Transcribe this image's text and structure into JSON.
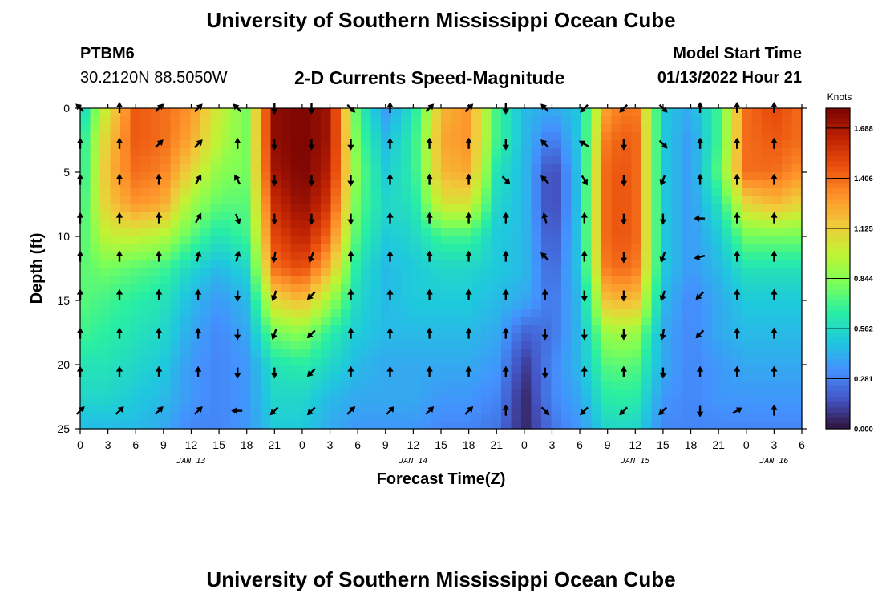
{
  "header": {
    "main_title": "University of Southern Mississippi Ocean Cube",
    "station": "PTBM6",
    "coordinates": "30.2120N  88.5050W",
    "subtitle": "2-D Currents Speed-Magnitude",
    "model_start_label": "Model Start Time",
    "model_start_value": "01/13/2022 Hour 21",
    "bottom_title": "University of Southern Mississippi Ocean Cube"
  },
  "chart_data": {
    "type": "heatmap",
    "title": "2-D Currents Speed-Magnitude",
    "xlabel": "Forecast Time(Z)",
    "ylabel": "Depth (ft)",
    "x_unit": "hours since 00Z JAN 13",
    "xlim": [
      0,
      78
    ],
    "ylim": [
      0,
      25
    ],
    "y_inverted": true,
    "x_ticks": [
      {
        "h": 0,
        "label": "0"
      },
      {
        "h": 3,
        "label": "3"
      },
      {
        "h": 6,
        "label": "6"
      },
      {
        "h": 9,
        "label": "9"
      },
      {
        "h": 12,
        "label": "12"
      },
      {
        "h": 15,
        "label": "15"
      },
      {
        "h": 18,
        "label": "18"
      },
      {
        "h": 21,
        "label": "21"
      },
      {
        "h": 24,
        "label": "0"
      },
      {
        "h": 27,
        "label": "3"
      },
      {
        "h": 30,
        "label": "6"
      },
      {
        "h": 33,
        "label": "9"
      },
      {
        "h": 36,
        "label": "12"
      },
      {
        "h": 39,
        "label": "15"
      },
      {
        "h": 42,
        "label": "18"
      },
      {
        "h": 45,
        "label": "21"
      },
      {
        "h": 48,
        "label": "0"
      },
      {
        "h": 51,
        "label": "3"
      },
      {
        "h": 54,
        "label": "6"
      },
      {
        "h": 57,
        "label": "9"
      },
      {
        "h": 60,
        "label": "12"
      },
      {
        "h": 63,
        "label": "15"
      },
      {
        "h": 66,
        "label": "18"
      },
      {
        "h": 69,
        "label": "21"
      },
      {
        "h": 72,
        "label": "0"
      },
      {
        "h": 75,
        "label": "3"
      },
      {
        "h": 78,
        "label": "6"
      }
    ],
    "y_ticks": [
      {
        "d": 0,
        "label": "0"
      },
      {
        "d": 5,
        "label": "5"
      },
      {
        "d": 10,
        "label": "10"
      },
      {
        "d": 15,
        "label": "15"
      },
      {
        "d": 20,
        "label": "20"
      },
      {
        "d": 25,
        "label": "25"
      }
    ],
    "date_labels": [
      {
        "h": 12,
        "label": "JAN 13"
      },
      {
        "h": 36,
        "label": "JAN 14"
      },
      {
        "h": 60,
        "label": "JAN 15"
      },
      {
        "h": 75,
        "label": "JAN 16"
      }
    ],
    "colorbar": {
      "unit": "Knots",
      "min": 0.0,
      "max": 1.8,
      "ticks": [
        0.0,
        0.281,
        0.562,
        0.844,
        1.125,
        1.406,
        1.688
      ],
      "tick_labels": [
        "0.000",
        "0.281",
        "0.562",
        "0.844",
        "1.125",
        "1.406",
        "1.688"
      ],
      "colors": [
        "#30123b",
        "#4454c4",
        "#4490fe",
        "#1fc8de",
        "#29efa2",
        "#7dff56",
        "#c1f334",
        "#f1ca3a",
        "#fe922a",
        "#ea4f0d",
        "#be2102",
        "#7a0403"
      ]
    },
    "depths_ft": [
      0,
      2.5,
      5,
      7.5,
      10,
      12.5,
      15,
      17.5,
      20,
      22.5,
      25
    ],
    "hours": [
      0,
      3,
      6,
      9,
      12,
      15,
      18,
      21,
      24,
      27,
      30,
      33,
      36,
      39,
      42,
      45,
      48,
      51,
      54,
      57,
      60,
      63,
      66,
      69,
      72,
      75,
      78
    ],
    "speed_knots": [
      [
        0.5,
        1.05,
        1.45,
        1.4,
        1.3,
        1.0,
        0.8,
        1.75,
        1.8,
        1.7,
        0.7,
        0.35,
        0.6,
        1.2,
        1.3,
        0.7,
        0.45,
        0.4,
        0.5,
        1.3,
        1.4,
        0.5,
        0.4,
        0.7,
        1.4,
        1.5,
        1.4
      ],
      [
        0.6,
        1.15,
        1.45,
        1.4,
        1.25,
        0.95,
        0.8,
        1.75,
        1.8,
        1.7,
        0.75,
        0.45,
        0.65,
        1.25,
        1.3,
        0.7,
        0.45,
        0.25,
        0.5,
        1.4,
        1.45,
        0.5,
        0.35,
        0.7,
        1.4,
        1.45,
        1.4
      ],
      [
        0.6,
        1.2,
        1.4,
        1.35,
        1.1,
        0.85,
        0.8,
        1.7,
        1.8,
        1.65,
        0.8,
        0.5,
        0.65,
        1.2,
        1.25,
        0.6,
        0.45,
        0.1,
        0.5,
        1.45,
        1.45,
        0.5,
        0.35,
        0.75,
        1.4,
        1.4,
        1.3
      ],
      [
        0.65,
        1.15,
        1.3,
        1.25,
        0.9,
        0.75,
        0.75,
        1.6,
        1.75,
        1.55,
        0.75,
        0.55,
        0.6,
        1.05,
        1.05,
        0.55,
        0.45,
        0.1,
        0.5,
        1.45,
        1.45,
        0.5,
        0.35,
        0.6,
        1.1,
        1.2,
        1.1
      ],
      [
        0.7,
        1.0,
        1.0,
        0.95,
        0.75,
        0.6,
        0.7,
        1.5,
        1.65,
        1.4,
        0.7,
        0.5,
        0.55,
        0.7,
        0.7,
        0.5,
        0.45,
        0.15,
        0.5,
        1.45,
        1.45,
        0.5,
        0.35,
        0.5,
        0.8,
        0.8,
        0.8
      ],
      [
        0.75,
        0.8,
        0.75,
        0.7,
        0.55,
        0.45,
        0.55,
        1.4,
        1.5,
        1.2,
        0.6,
        0.45,
        0.5,
        0.55,
        0.55,
        0.5,
        0.45,
        0.2,
        0.5,
        1.4,
        1.4,
        0.5,
        0.35,
        0.45,
        0.6,
        0.6,
        0.6
      ],
      [
        0.75,
        0.7,
        0.65,
        0.6,
        0.45,
        0.35,
        0.45,
        1.1,
        1.2,
        0.9,
        0.55,
        0.45,
        0.5,
        0.5,
        0.5,
        0.45,
        0.4,
        0.25,
        0.45,
        1.2,
        1.2,
        0.45,
        0.3,
        0.4,
        0.5,
        0.5,
        0.5
      ],
      [
        0.7,
        0.65,
        0.6,
        0.55,
        0.4,
        0.3,
        0.4,
        0.8,
        0.85,
        0.65,
        0.5,
        0.45,
        0.45,
        0.45,
        0.45,
        0.4,
        0.2,
        0.25,
        0.45,
        0.9,
        0.9,
        0.4,
        0.3,
        0.4,
        0.45,
        0.45,
        0.45
      ],
      [
        0.6,
        0.6,
        0.55,
        0.5,
        0.35,
        0.3,
        0.35,
        0.6,
        0.65,
        0.55,
        0.45,
        0.4,
        0.4,
        0.4,
        0.4,
        0.35,
        0.1,
        0.3,
        0.45,
        0.75,
        0.75,
        0.4,
        0.3,
        0.35,
        0.4,
        0.4,
        0.4
      ],
      [
        0.55,
        0.55,
        0.5,
        0.45,
        0.35,
        0.3,
        0.35,
        0.55,
        0.55,
        0.45,
        0.4,
        0.4,
        0.4,
        0.35,
        0.35,
        0.3,
        0.05,
        0.3,
        0.4,
        0.65,
        0.65,
        0.35,
        0.3,
        0.35,
        0.35,
        0.35,
        0.35
      ],
      [
        0.45,
        0.45,
        0.45,
        0.4,
        0.3,
        0.3,
        0.35,
        0.5,
        0.5,
        0.4,
        0.35,
        0.35,
        0.35,
        0.3,
        0.3,
        0.25,
        0.05,
        0.25,
        0.35,
        0.55,
        0.55,
        0.3,
        0.3,
        0.3,
        0.3,
        0.3,
        0.3
      ]
    ],
    "vector_depths_ft": [
      0,
      2.8,
      5.6,
      8.6,
      11.6,
      14.6,
      17.6,
      20.6,
      23.6
    ],
    "vector_hours": [
      0,
      4.25,
      8.5,
      12.75,
      17,
      21,
      25,
      29.25,
      33.5,
      37.75,
      42,
      46,
      50.25,
      54.5,
      58.75,
      63,
      67,
      71,
      75
    ],
    "direction_deg": [
      [
        315,
        0,
        45,
        45,
        315,
        180,
        180,
        135,
        0,
        45,
        45,
        180,
        315,
        225,
        225,
        135,
        0,
        0,
        0
      ],
      [
        0,
        0,
        45,
        45,
        0,
        180,
        180,
        180,
        0,
        0,
        0,
        180,
        315,
        300,
        180,
        135,
        0,
        0,
        0
      ],
      [
        0,
        0,
        0,
        30,
        330,
        180,
        180,
        180,
        0,
        0,
        0,
        135,
        315,
        150,
        180,
        200,
        0,
        0,
        0
      ],
      [
        0,
        0,
        0,
        30,
        160,
        180,
        180,
        180,
        0,
        0,
        0,
        0,
        345,
        0,
        180,
        180,
        270,
        0,
        0
      ],
      [
        0,
        0,
        0,
        15,
        15,
        190,
        200,
        0,
        0,
        0,
        0,
        0,
        315,
        0,
        180,
        200,
        255,
        0,
        0
      ],
      [
        0,
        0,
        0,
        0,
        180,
        200,
        225,
        0,
        0,
        0,
        0,
        0,
        0,
        180,
        180,
        200,
        225,
        0,
        0
      ],
      [
        0,
        0,
        0,
        0,
        180,
        200,
        225,
        0,
        0,
        0,
        0,
        0,
        180,
        180,
        180,
        190,
        225,
        0,
        0
      ],
      [
        0,
        0,
        0,
        0,
        180,
        180,
        225,
        0,
        0,
        0,
        0,
        0,
        180,
        0,
        0,
        180,
        0,
        0,
        0
      ],
      [
        45,
        45,
        45,
        45,
        270,
        225,
        225,
        45,
        45,
        45,
        45,
        0,
        135,
        225,
        225,
        225,
        180,
        60,
        0
      ]
    ]
  }
}
